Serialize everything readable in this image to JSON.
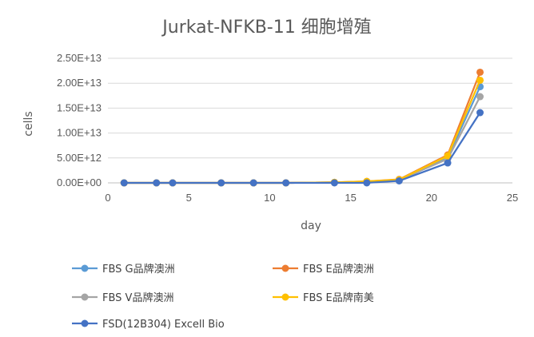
{
  "chart_data": {
    "type": "line",
    "title": "Jurkat-NFKB-11 细胞增殖",
    "xlabel": "day",
    "ylabel": "cells",
    "xlim": [
      0,
      25
    ],
    "ylim": [
      0,
      25000000000000.0
    ],
    "x_ticks": [
      "0",
      "5",
      "10",
      "15",
      "20",
      "25"
    ],
    "y_ticks": [
      "0.00E+00",
      "5.00E+12",
      "1.00E+13",
      "1.50E+13",
      "2.00E+13",
      "2.50E+13"
    ],
    "x": [
      1,
      3,
      4,
      7,
      9,
      11,
      14,
      16,
      18,
      21,
      23
    ],
    "grid": "horizontal",
    "legend_position": "bottom",
    "series": [
      {
        "name": "FBS  G品牌澳洲",
        "color": "#5B9BD5",
        "values": [
          0,
          0,
          0,
          0,
          0,
          0,
          100000000000.0,
          200000000000.0,
          500000000000.0,
          5000000000000.0,
          19300000000000.0
        ]
      },
      {
        "name": "FBS  E品牌澳洲",
        "color": "#ED7D31",
        "values": [
          0,
          0,
          0,
          0,
          0,
          0,
          100000000000.0,
          300000000000.0,
          700000000000.0,
          5600000000000.0,
          22200000000000.0
        ]
      },
      {
        "name": "FBS  V品牌澳洲",
        "color": "#A5A5A5",
        "values": [
          0,
          0,
          0,
          0,
          0,
          0,
          100000000000.0,
          250000000000.0,
          600000000000.0,
          4800000000000.0,
          17300000000000.0
        ]
      },
      {
        "name": "FBS  E品牌南美",
        "color": "#FFC000",
        "values": [
          0,
          0,
          0,
          0,
          0,
          0,
          100000000000.0,
          300000000000.0,
          650000000000.0,
          5400000000000.0,
          20600000000000.0
        ]
      },
      {
        "name": "FSD(12B304) Excell Bio",
        "color": "#4472C4",
        "values": [
          0,
          0,
          0,
          0,
          0,
          0,
          0,
          10000000000.0,
          400000000000.0,
          4000000000000.0,
          14100000000000.0
        ]
      }
    ]
  }
}
